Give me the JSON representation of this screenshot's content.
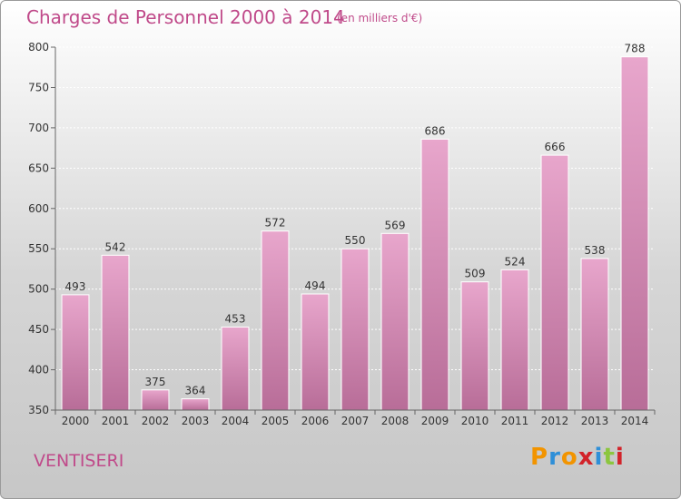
{
  "header": {
    "title": "Charges de Personnel 2000 à 2014",
    "subtitle": "(en milliers d'€)"
  },
  "footer": {
    "commune": "VENTISERI",
    "brand_letters": [
      "P",
      "r",
      "o",
      "x",
      "i",
      "t",
      "i"
    ],
    "brand_colors": [
      "#f29400",
      "#2e8fd8",
      "#f29400",
      "#d2232a",
      "#2e8fd8",
      "#8cc63f",
      "#d2232a"
    ]
  },
  "chart_data": {
    "type": "bar",
    "categories": [
      "2000",
      "2001",
      "2002",
      "2003",
      "2004",
      "2005",
      "2006",
      "2007",
      "2008",
      "2009",
      "2010",
      "2011",
      "2012",
      "2013",
      "2014"
    ],
    "values": [
      493,
      542,
      375,
      364,
      453,
      572,
      494,
      550,
      569,
      686,
      509,
      524,
      666,
      538,
      788
    ],
    "ylim": [
      350,
      800
    ],
    "yticks": [
      350,
      400,
      450,
      500,
      550,
      600,
      650,
      700,
      750,
      800
    ],
    "grid": true,
    "bar_color": "#d985b5"
  }
}
